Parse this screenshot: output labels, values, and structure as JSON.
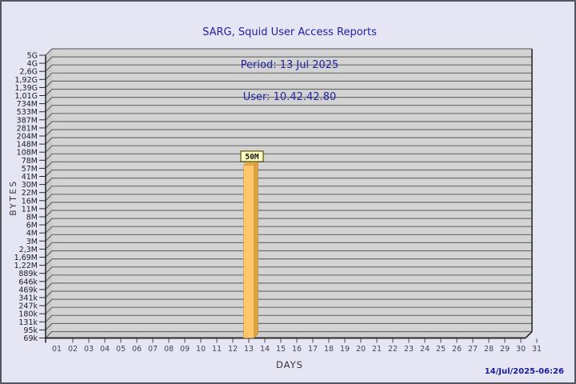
{
  "header": {
    "title": "SARG, Squid User Access Reports",
    "period": "Period: 13 Jul 2025",
    "user": "User: 10.42.42.80"
  },
  "footer": {
    "timestamp": "14/Jul/2025-06:26",
    "timestamp_color": "#1A1AA0"
  },
  "chart_data": {
    "type": "bar",
    "title": "SARG, Squid User Access Reports",
    "period": "13 Jul 2025",
    "user": "10.42.42.80",
    "xlabel": "DAYS",
    "ylabel": "BYTES",
    "y_scale": "log",
    "grid": true,
    "x_categories": [
      "01",
      "02",
      "03",
      "04",
      "05",
      "06",
      "07",
      "08",
      "09",
      "10",
      "11",
      "12",
      "13",
      "14",
      "15",
      "16",
      "17",
      "18",
      "19",
      "20",
      "21",
      "22",
      "23",
      "24",
      "25",
      "26",
      "27",
      "28",
      "29",
      "30",
      "31"
    ],
    "y_ticks": [
      "5G",
      "4G",
      "2,6G",
      "1,92G",
      "1,39G",
      "1,01G",
      "734M",
      "533M",
      "387M",
      "281M",
      "204M",
      "148M",
      "108M",
      "78M",
      "57M",
      "41M",
      "30M",
      "22M",
      "16M",
      "11M",
      "8M",
      "6M",
      "4M",
      "3M",
      "2,3M",
      "1,69M",
      "1,22M",
      "889k",
      "646k",
      "469k",
      "341k",
      "247k",
      "180k",
      "131k",
      "95k",
      "69k"
    ],
    "bars": [
      {
        "day": 13,
        "label": "50M",
        "value_bytes": 50000000
      }
    ],
    "colors": {
      "title_text": "#2222A2",
      "plot_bg": "#D3D3D3",
      "wall_bg": "#C9C9C9",
      "floor_bg": "#CFCFCF",
      "grid_line": "#6E6E6E",
      "frame_line": "#2A2A2A",
      "bar_front": "#FFC66B",
      "bar_side": "#DFA33F",
      "bar_top": "#E8AC48",
      "value_box_bg": "#FFFFC6",
      "value_box_border": "#55550A",
      "page_bg": "#E5E5F4"
    }
  }
}
